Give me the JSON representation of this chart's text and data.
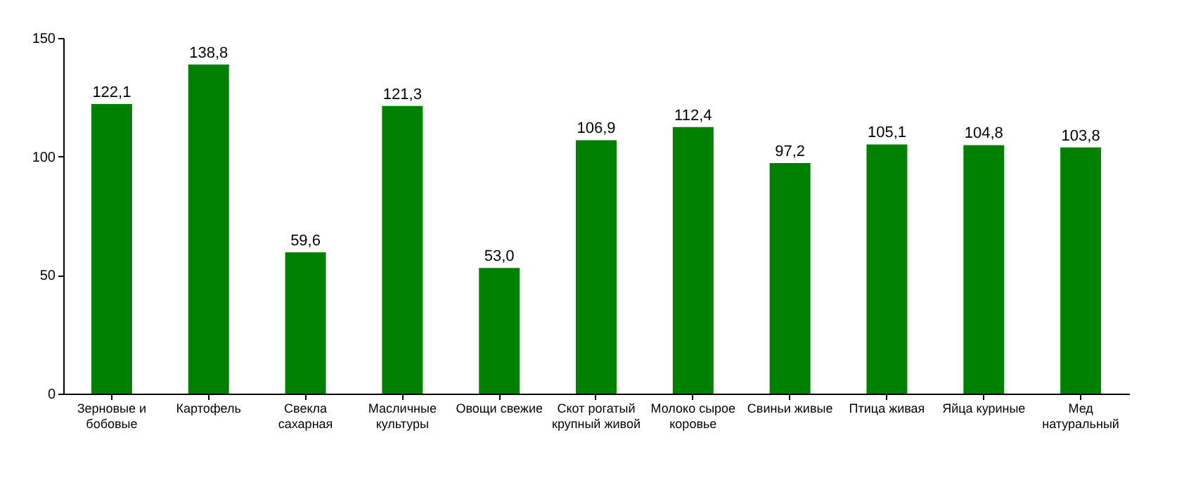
{
  "chart_data": {
    "type": "bar",
    "categories": [
      "Зерновые и бобовые",
      "Картофель",
      "Свекла сахарная",
      "Масличные культуры",
      "Овощи свежие",
      "Скот рогатый крупный живой",
      "Молоко сырое коровье",
      "Свиньи живые",
      "Птица живая",
      "Яйца куриные",
      "Мед натуральный"
    ],
    "values": [
      122.1,
      138.8,
      59.6,
      121.3,
      53.0,
      106.9,
      112.4,
      97.2,
      105.1,
      104.8,
      103.8
    ],
    "value_labels": [
      "122,1",
      "138,8",
      "59,6",
      "121,3",
      "53,0",
      "106,9",
      "112,4",
      "97,2",
      "105,1",
      "104,8",
      "103,8"
    ],
    "color": "#008000",
    "ylim": [
      0,
      150
    ],
    "yticks": [
      0,
      50,
      100,
      150
    ],
    "grid": false
  }
}
